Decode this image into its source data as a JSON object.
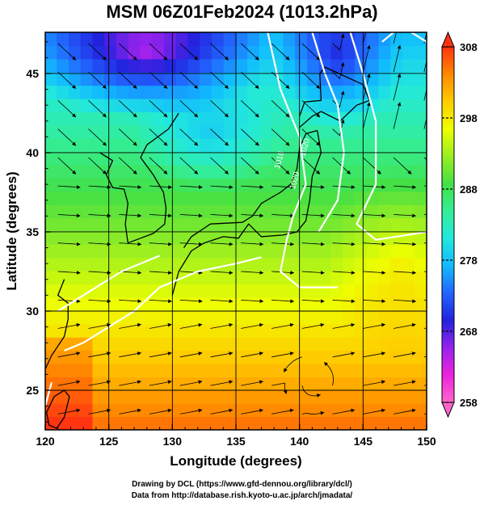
{
  "title": "MSM 06Z01Feb2024 (1013.2hPa)",
  "credits": {
    "line1": "Drawing by DCL (https://www.gfd-dennou.org/library/dcl/)",
    "line2": "Data from http://database.rish.kyoto-u.ac.jp/arch/jmadata/"
  },
  "chart_data": {
    "type": "heatmap",
    "title": "MSM 06Z01Feb2024 (1013.2hPa)",
    "xlabel": "Longitude (degrees)",
    "ylabel": "Latitude  (degrees)",
    "xlim": [
      120,
      150
    ],
    "ylim": [
      22.5,
      47.6
    ],
    "x_ticks": [
      120,
      125,
      130,
      135,
      140,
      145,
      150
    ],
    "y_ticks": [
      25,
      30,
      35,
      40,
      45
    ],
    "grid": true,
    "field": "temperature (K)",
    "colorbar": {
      "ticks": [
        258,
        268,
        278,
        288,
        298,
        308
      ],
      "range": [
        258,
        308
      ],
      "extend": "both",
      "colors": [
        "#ff66cc",
        "#ee22dd",
        "#9922ee",
        "#2222dd",
        "#2266ff",
        "#11bbff",
        "#22e8dd",
        "#33ee99",
        "#44e044",
        "#99ee22",
        "#eeff00",
        "#ffcc00",
        "#ff8800",
        "#ff3311"
      ]
    },
    "contours": {
      "labeled_values": [
        "1016",
        "1020",
        "1020"
      ],
      "color": "#ffffff"
    },
    "overlay": "wind streamlines",
    "coastlines": true
  }
}
